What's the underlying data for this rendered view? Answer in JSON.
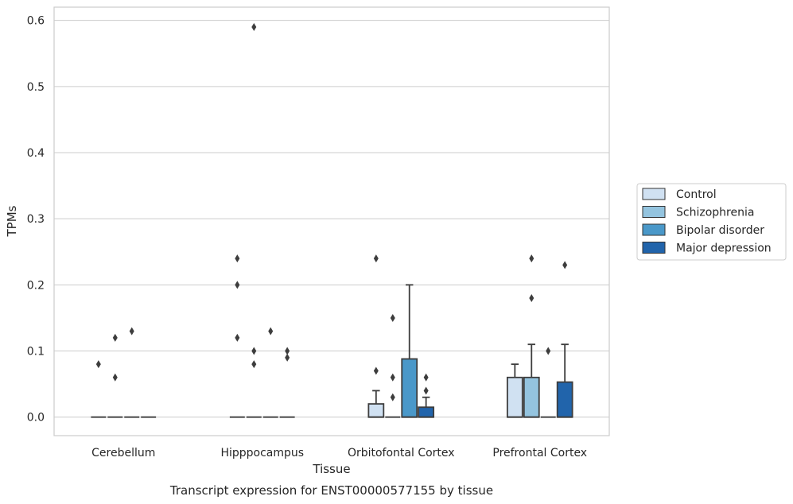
{
  "chart_data": {
    "type": "box",
    "title": "Transcript expression for ENST00000577155 by tissue",
    "xlabel": "Tissue",
    "ylabel": "TPMs",
    "ylim": [
      -0.028,
      0.62
    ],
    "yticks": [
      "0.0",
      "0.1",
      "0.2",
      "0.3",
      "0.4",
      "0.5",
      "0.6"
    ],
    "categories": [
      "Cerebellum",
      "Hipppocampus",
      "Orbitofontal Cortex",
      "Prefrontal Cortex"
    ],
    "grid": true,
    "legend_position": "right",
    "series": [
      {
        "name": "Control",
        "color": "#d0e1f2",
        "boxes": [
          {
            "q1": 0,
            "median": 0,
            "q3": 0,
            "whisker_low": 0,
            "whisker_high": 0,
            "outliers": [
              0.08
            ]
          },
          {
            "q1": 0,
            "median": 0,
            "q3": 0,
            "whisker_low": 0,
            "whisker_high": 0,
            "outliers": [
              0.12,
              0.2,
              0.24
            ]
          },
          {
            "q1": 0,
            "median": 0,
            "q3": 0.02,
            "whisker_low": 0,
            "whisker_high": 0.04,
            "outliers": [
              0.07,
              0.24
            ]
          },
          {
            "q1": 0,
            "median": 0,
            "q3": 0.06,
            "whisker_low": 0,
            "whisker_high": 0.08,
            "outliers": []
          }
        ]
      },
      {
        "name": "Schizophrenia",
        "color": "#94c4df",
        "boxes": [
          {
            "q1": 0,
            "median": 0,
            "q3": 0,
            "whisker_low": 0,
            "whisker_high": 0,
            "outliers": [
              0.06,
              0.12
            ]
          },
          {
            "q1": 0,
            "median": 0,
            "q3": 0,
            "whisker_low": 0,
            "whisker_high": 0,
            "outliers": [
              0.08,
              0.1,
              0.59
            ]
          },
          {
            "q1": 0,
            "median": 0,
            "q3": 0,
            "whisker_low": 0,
            "whisker_high": 0,
            "outliers": [
              0.03,
              0.06,
              0.15
            ]
          },
          {
            "q1": 0,
            "median": 0,
            "q3": 0.06,
            "whisker_low": 0,
            "whisker_high": 0.11,
            "outliers": [
              0.18,
              0.24
            ]
          }
        ]
      },
      {
        "name": "Bipolar disorder",
        "color": "#4a98c9",
        "boxes": [
          {
            "q1": 0,
            "median": 0,
            "q3": 0,
            "whisker_low": 0,
            "whisker_high": 0,
            "outliers": [
              0.13
            ]
          },
          {
            "q1": 0,
            "median": 0,
            "q3": 0,
            "whisker_low": 0,
            "whisker_high": 0,
            "outliers": [
              0.13
            ]
          },
          {
            "q1": 0,
            "median": 0,
            "q3": 0.088,
            "whisker_low": 0,
            "whisker_high": 0.2,
            "outliers": []
          },
          {
            "q1": 0,
            "median": 0,
            "q3": 0,
            "whisker_low": 0,
            "whisker_high": 0,
            "outliers": [
              0.1
            ]
          }
        ]
      },
      {
        "name": "Major depression",
        "color": "#2164ab",
        "boxes": [
          {
            "q1": 0,
            "median": 0,
            "q3": 0,
            "whisker_low": 0,
            "whisker_high": 0,
            "outliers": []
          },
          {
            "q1": 0,
            "median": 0,
            "q3": 0,
            "whisker_low": 0,
            "whisker_high": 0,
            "outliers": [
              0.09,
              0.1
            ]
          },
          {
            "q1": 0,
            "median": 0,
            "q3": 0.015,
            "whisker_low": 0,
            "whisker_high": 0.03,
            "outliers": [
              0.04,
              0.06
            ]
          },
          {
            "q1": 0,
            "median": 0,
            "q3": 0.053,
            "whisker_low": 0,
            "whisker_high": 0.11,
            "outliers": [
              0.23
            ]
          }
        ]
      }
    ]
  }
}
